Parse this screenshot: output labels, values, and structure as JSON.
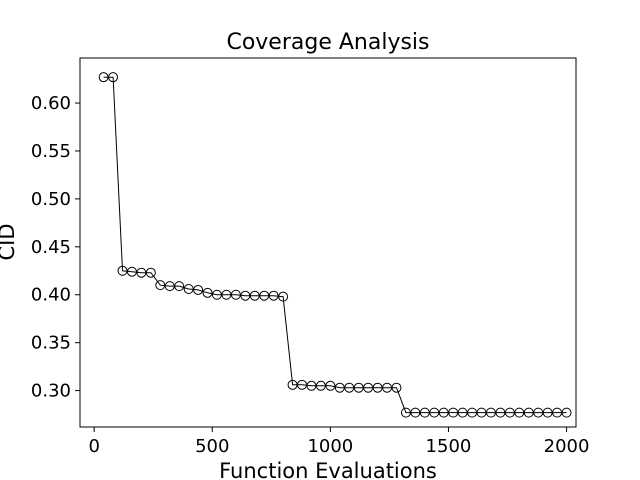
{
  "chart_data": {
    "type": "line",
    "title": "Coverage Analysis",
    "xlabel": "Function Evaluations",
    "ylabel": "CID",
    "xlim": [
      -60,
      2040
    ],
    "ylim": [
      0.262,
      0.647
    ],
    "xticks": [
      0,
      500,
      1000,
      1500,
      2000
    ],
    "xtick_labels": [
      "0",
      "500",
      "1000",
      "1500",
      "2000"
    ],
    "yticks": [
      0.3,
      0.35,
      0.4,
      0.45,
      0.5,
      0.55,
      0.6
    ],
    "ytick_labels": [
      "0.30",
      "0.35",
      "0.40",
      "0.45",
      "0.50",
      "0.55",
      "0.60"
    ],
    "grid": false,
    "legend": "none",
    "marker": "open-circle",
    "line_color": "#000000",
    "series": [
      {
        "x": [
          40,
          80,
          120,
          160,
          200,
          240,
          280,
          320,
          360,
          400,
          440,
          480,
          520,
          560,
          600,
          640,
          680,
          720,
          760,
          800,
          840,
          880,
          920,
          960,
          1000,
          1040,
          1080,
          1120,
          1160,
          1200,
          1240,
          1280,
          1320,
          1360,
          1400,
          1440,
          1480,
          1520,
          1560,
          1600,
          1640,
          1680,
          1720,
          1760,
          1800,
          1840,
          1880,
          1920,
          1960,
          2000
        ],
        "values": [
          0.627,
          0.627,
          0.425,
          0.424,
          0.423,
          0.423,
          0.41,
          0.409,
          0.409,
          0.406,
          0.405,
          0.402,
          0.4,
          0.4,
          0.4,
          0.399,
          0.399,
          0.399,
          0.399,
          0.398,
          0.306,
          0.306,
          0.305,
          0.305,
          0.305,
          0.303,
          0.303,
          0.303,
          0.303,
          0.303,
          0.303,
          0.303,
          0.277,
          0.277,
          0.277,
          0.277,
          0.277,
          0.277,
          0.277,
          0.277,
          0.277,
          0.277,
          0.277,
          0.277,
          0.277,
          0.277,
          0.277,
          0.277,
          0.277,
          0.277
        ]
      }
    ]
  }
}
